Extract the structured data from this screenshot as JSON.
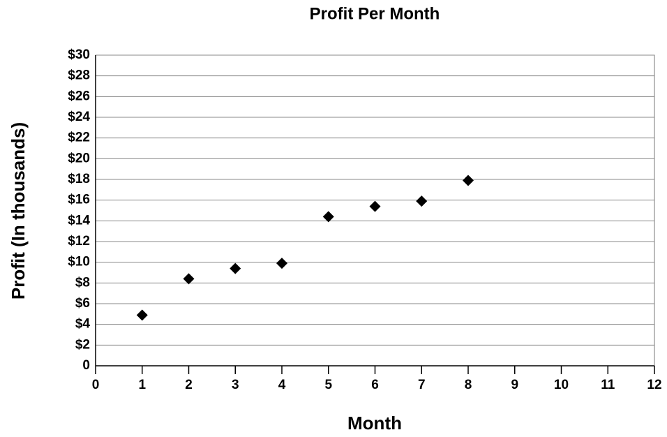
{
  "chart_data": {
    "type": "scatter",
    "title": "Profit Per Month",
    "x_label": "Month",
    "y_label": "Profit (In thousands)",
    "x": [
      1,
      2,
      3,
      4,
      5,
      6,
      7,
      8
    ],
    "values": [
      4.9,
      8.4,
      9.4,
      9.9,
      14.4,
      15.4,
      15.9,
      17.9
    ],
    "color": "#000000",
    "xlim": [
      0,
      12
    ],
    "xticks": [
      0,
      1,
      2,
      3,
      4,
      5,
      6,
      7,
      8,
      9,
      10,
      11,
      12
    ],
    "ylim": [
      0,
      30
    ],
    "yticks": [
      0,
      {
        "value": 2,
        "label": "$2"
      },
      {
        "value": 4,
        "label": "$4"
      },
      {
        "value": 6,
        "label": "$6"
      },
      {
        "value": 8,
        "label": "$8"
      },
      {
        "value": 10,
        "label": "$10"
      },
      {
        "value": 12,
        "label": "$12"
      },
      {
        "value": 14,
        "label": "$14"
      },
      {
        "value": 16,
        "label": "$16"
      },
      {
        "value": 18,
        "label": "$18"
      },
      {
        "value": 20,
        "label": "$20"
      },
      {
        "value": 22,
        "label": "$22"
      },
      {
        "value": 24,
        "label": "$24"
      },
      {
        "value": 26,
        "label": "$26"
      },
      {
        "value": 28,
        "label": "$28"
      },
      {
        "value": 30,
        "label": "$30"
      }
    ],
    "grid": true
  }
}
